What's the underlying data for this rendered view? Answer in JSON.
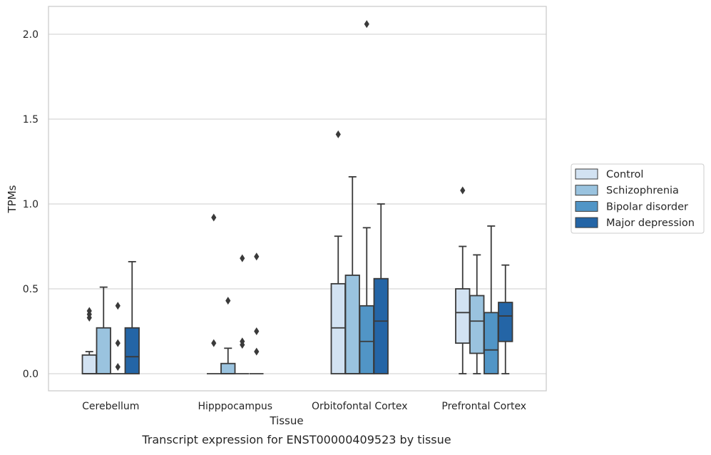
{
  "caption": "Transcript expression for ENST00000409523 by tissue",
  "chart_data": {
    "type": "box",
    "title": "",
    "xlabel": "Tissue",
    "ylabel": "TPMs",
    "ylim": [
      -0.1,
      2.16
    ],
    "yticks": [
      0.0,
      0.5,
      1.0,
      1.5,
      2.0
    ],
    "ytick_labels": [
      "0.0",
      "0.5",
      "1.0",
      "1.5",
      "2.0"
    ],
    "grid": "horizontal",
    "legend_position": "right",
    "categories": [
      "Cerebellum",
      "Hipppocampus",
      "Orbitofontal Cortex",
      "Prefrontal Cortex"
    ],
    "series": [
      {
        "name": "Control",
        "color": "#d2e2f2",
        "boxes": [
          {
            "q1": 0.0,
            "median": 0.0,
            "q3": 0.11,
            "whisker_low": 0.0,
            "whisker_high": 0.13,
            "outliers": [
              0.33,
              0.35,
              0.37
            ]
          },
          {
            "q1": 0.0,
            "median": 0.0,
            "q3": 0.0,
            "whisker_low": 0.0,
            "whisker_high": 0.0,
            "outliers": [
              0.18,
              0.92
            ]
          },
          {
            "q1": 0.0,
            "median": 0.27,
            "q3": 0.53,
            "whisker_low": 0.0,
            "whisker_high": 0.81,
            "outliers": [
              1.41
            ]
          },
          {
            "q1": 0.18,
            "median": 0.36,
            "q3": 0.5,
            "whisker_low": 0.0,
            "whisker_high": 0.75,
            "outliers": [
              1.08
            ]
          }
        ]
      },
      {
        "name": "Schizophrenia",
        "color": "#9ac3df",
        "boxes": [
          {
            "q1": 0.0,
            "median": 0.0,
            "q3": 0.27,
            "whisker_low": 0.0,
            "whisker_high": 0.51,
            "outliers": []
          },
          {
            "q1": 0.0,
            "median": 0.0,
            "q3": 0.06,
            "whisker_low": 0.0,
            "whisker_high": 0.15,
            "outliers": [
              0.43
            ]
          },
          {
            "q1": 0.0,
            "median": 0.0,
            "q3": 0.58,
            "whisker_low": 0.0,
            "whisker_high": 1.16,
            "outliers": []
          },
          {
            "q1": 0.12,
            "median": 0.31,
            "q3": 0.46,
            "whisker_low": 0.0,
            "whisker_high": 0.7,
            "outliers": []
          }
        ]
      },
      {
        "name": "Bipolar disorder",
        "color": "#5195c6",
        "boxes": [
          {
            "q1": 0.0,
            "median": 0.0,
            "q3": 0.0,
            "whisker_low": 0.0,
            "whisker_high": 0.0,
            "outliers": [
              0.04,
              0.18,
              0.4
            ]
          },
          {
            "q1": 0.0,
            "median": 0.0,
            "q3": 0.0,
            "whisker_low": 0.0,
            "whisker_high": 0.0,
            "outliers": [
              0.17,
              0.19,
              0.68
            ]
          },
          {
            "q1": 0.0,
            "median": 0.19,
            "q3": 0.4,
            "whisker_low": 0.0,
            "whisker_high": 0.86,
            "outliers": [
              2.06
            ]
          },
          {
            "q1": 0.0,
            "median": 0.14,
            "q3": 0.36,
            "whisker_low": 0.0,
            "whisker_high": 0.87,
            "outliers": []
          }
        ]
      },
      {
        "name": "Major depression",
        "color": "#2465a6",
        "boxes": [
          {
            "q1": 0.0,
            "median": 0.1,
            "q3": 0.27,
            "whisker_low": 0.0,
            "whisker_high": 0.66,
            "outliers": []
          },
          {
            "q1": 0.0,
            "median": 0.0,
            "q3": 0.0,
            "whisker_low": 0.0,
            "whisker_high": 0.0,
            "outliers": [
              0.13,
              0.25,
              0.69
            ]
          },
          {
            "q1": 0.0,
            "median": 0.31,
            "q3": 0.56,
            "whisker_low": 0.0,
            "whisker_high": 1.0,
            "outliers": []
          },
          {
            "q1": 0.19,
            "median": 0.34,
            "q3": 0.42,
            "whisker_low": 0.0,
            "whisker_high": 0.64,
            "outliers": []
          }
        ]
      }
    ]
  }
}
